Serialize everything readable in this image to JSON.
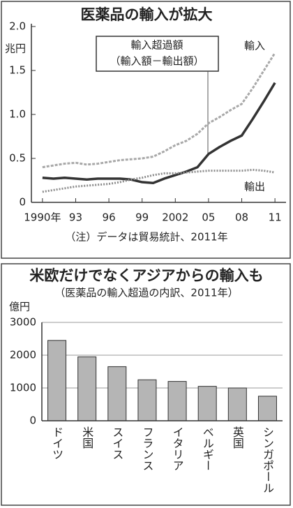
{
  "chart_data": [
    {
      "type": "line",
      "title": "医薬品の輸入が拡大",
      "y_label": "兆円",
      "annotation": "（輸入額－輸出額）",
      "note": "（注）データは貿易統計、2011年",
      "x": [
        1990,
        1991,
        1992,
        1993,
        1994,
        1995,
        1996,
        1997,
        1998,
        1999,
        2000,
        2001,
        2002,
        2003,
        2004,
        2005,
        2006,
        2007,
        2008,
        2009,
        2010,
        2011
      ],
      "series": [
        {
          "name": "輸入",
          "color": "#a8a8a8",
          "values": [
            0.4,
            0.42,
            0.44,
            0.45,
            0.43,
            0.44,
            0.46,
            0.48,
            0.49,
            0.5,
            0.52,
            0.58,
            0.65,
            0.7,
            0.78,
            0.9,
            0.97,
            1.05,
            1.12,
            1.3,
            1.5,
            1.7
          ]
        },
        {
          "name": "輸入超過額",
          "color": "#333333",
          "values": [
            0.28,
            0.27,
            0.28,
            0.27,
            0.26,
            0.27,
            0.27,
            0.27,
            0.26,
            0.23,
            0.22,
            0.27,
            0.31,
            0.35,
            0.4,
            0.55,
            0.63,
            0.7,
            0.76,
            0.95,
            1.15,
            1.36
          ]
        },
        {
          "name": "輸出",
          "color": "#8c8c8c",
          "values": [
            0.12,
            0.14,
            0.16,
            0.18,
            0.19,
            0.2,
            0.21,
            0.23,
            0.26,
            0.28,
            0.31,
            0.33,
            0.33,
            0.34,
            0.35,
            0.36,
            0.36,
            0.36,
            0.36,
            0.37,
            0.36,
            0.34
          ]
        }
      ],
      "xlim": [
        1989,
        2012
      ],
      "xticks": [
        {
          "value": 1990,
          "label": "1990年"
        },
        {
          "value": 1993,
          "label": "93"
        },
        {
          "value": 1996,
          "label": "96"
        },
        {
          "value": 1999,
          "label": "99"
        },
        2002,
        {
          "value": 2005,
          "label": "05"
        },
        {
          "value": 2008,
          "label": "08"
        },
        {
          "value": 2011,
          "label": "11"
        }
      ],
      "ylim": [
        0,
        2
      ],
      "yticks": [
        0,
        0.5,
        {
          "value": 1,
          "label": "1.0"
        },
        1.5,
        {
          "value": 2,
          "label": "2.0"
        }
      ],
      "grid": false
    },
    {
      "type": "bar",
      "title": "米欧だけでなくアジアからの輸入も",
      "subtitle": "（医薬品の輸入超過の内訳、2011年）",
      "y_label": "億円",
      "categories": [
        "ドイツ",
        "米国",
        "スイス",
        "フランス",
        "イタリア",
        "ベルギー",
        "英国",
        "シンガポール"
      ],
      "values": [
        2450,
        1950,
        1650,
        1250,
        1200,
        1050,
        1000,
        750
      ],
      "color": "#b5b5b5",
      "ylim": [
        0,
        3000
      ],
      "yticks": [
        0,
        1000,
        2000,
        3000
      ],
      "grid": true
    }
  ]
}
